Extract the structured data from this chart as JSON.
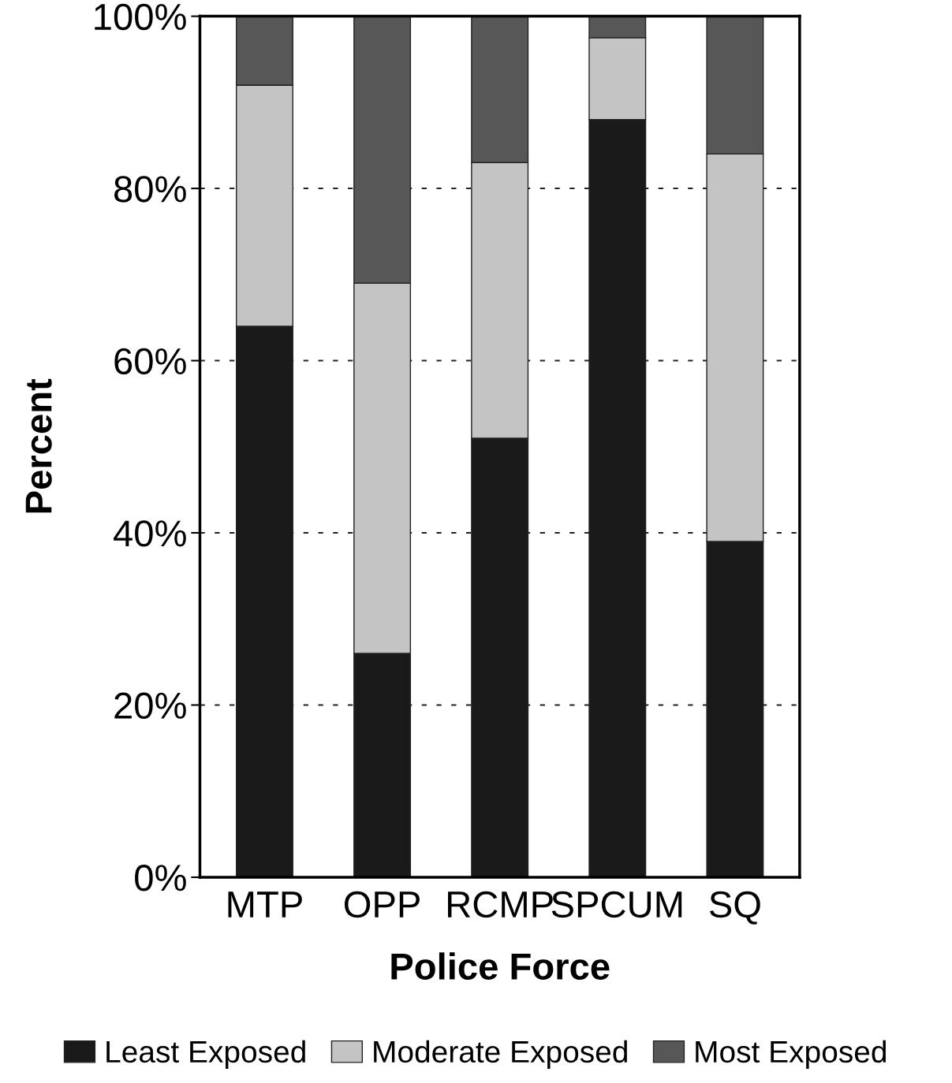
{
  "chart_data": {
    "type": "bar",
    "stacked": true,
    "xlabel": "Police Force",
    "ylabel": "Percent",
    "categories": [
      "MTP",
      "OPP",
      "RCMP",
      "SPCUM",
      "SQ"
    ],
    "series": [
      {
        "name": "Least Exposed",
        "color": "#1a1a1a",
        "values": [
          64,
          26,
          51,
          88,
          39
        ]
      },
      {
        "name": "Moderate Exposed",
        "color": "#c4c4c4",
        "values": [
          28,
          43,
          32,
          9.5,
          45
        ]
      },
      {
        "name": "Most Exposed",
        "color": "#575757",
        "values": [
          8,
          31,
          17,
          2.5,
          16
        ]
      }
    ],
    "ylim": [
      0,
      100
    ],
    "yticks": [
      {
        "value": 0,
        "label": "0%"
      },
      {
        "value": 20,
        "label": "20%"
      },
      {
        "value": 40,
        "label": "40%"
      },
      {
        "value": 60,
        "label": "60%"
      },
      {
        "value": 80,
        "label": "80%"
      },
      {
        "value": 100,
        "label": "100%"
      }
    ],
    "grid": "y",
    "legend": "bottom"
  }
}
